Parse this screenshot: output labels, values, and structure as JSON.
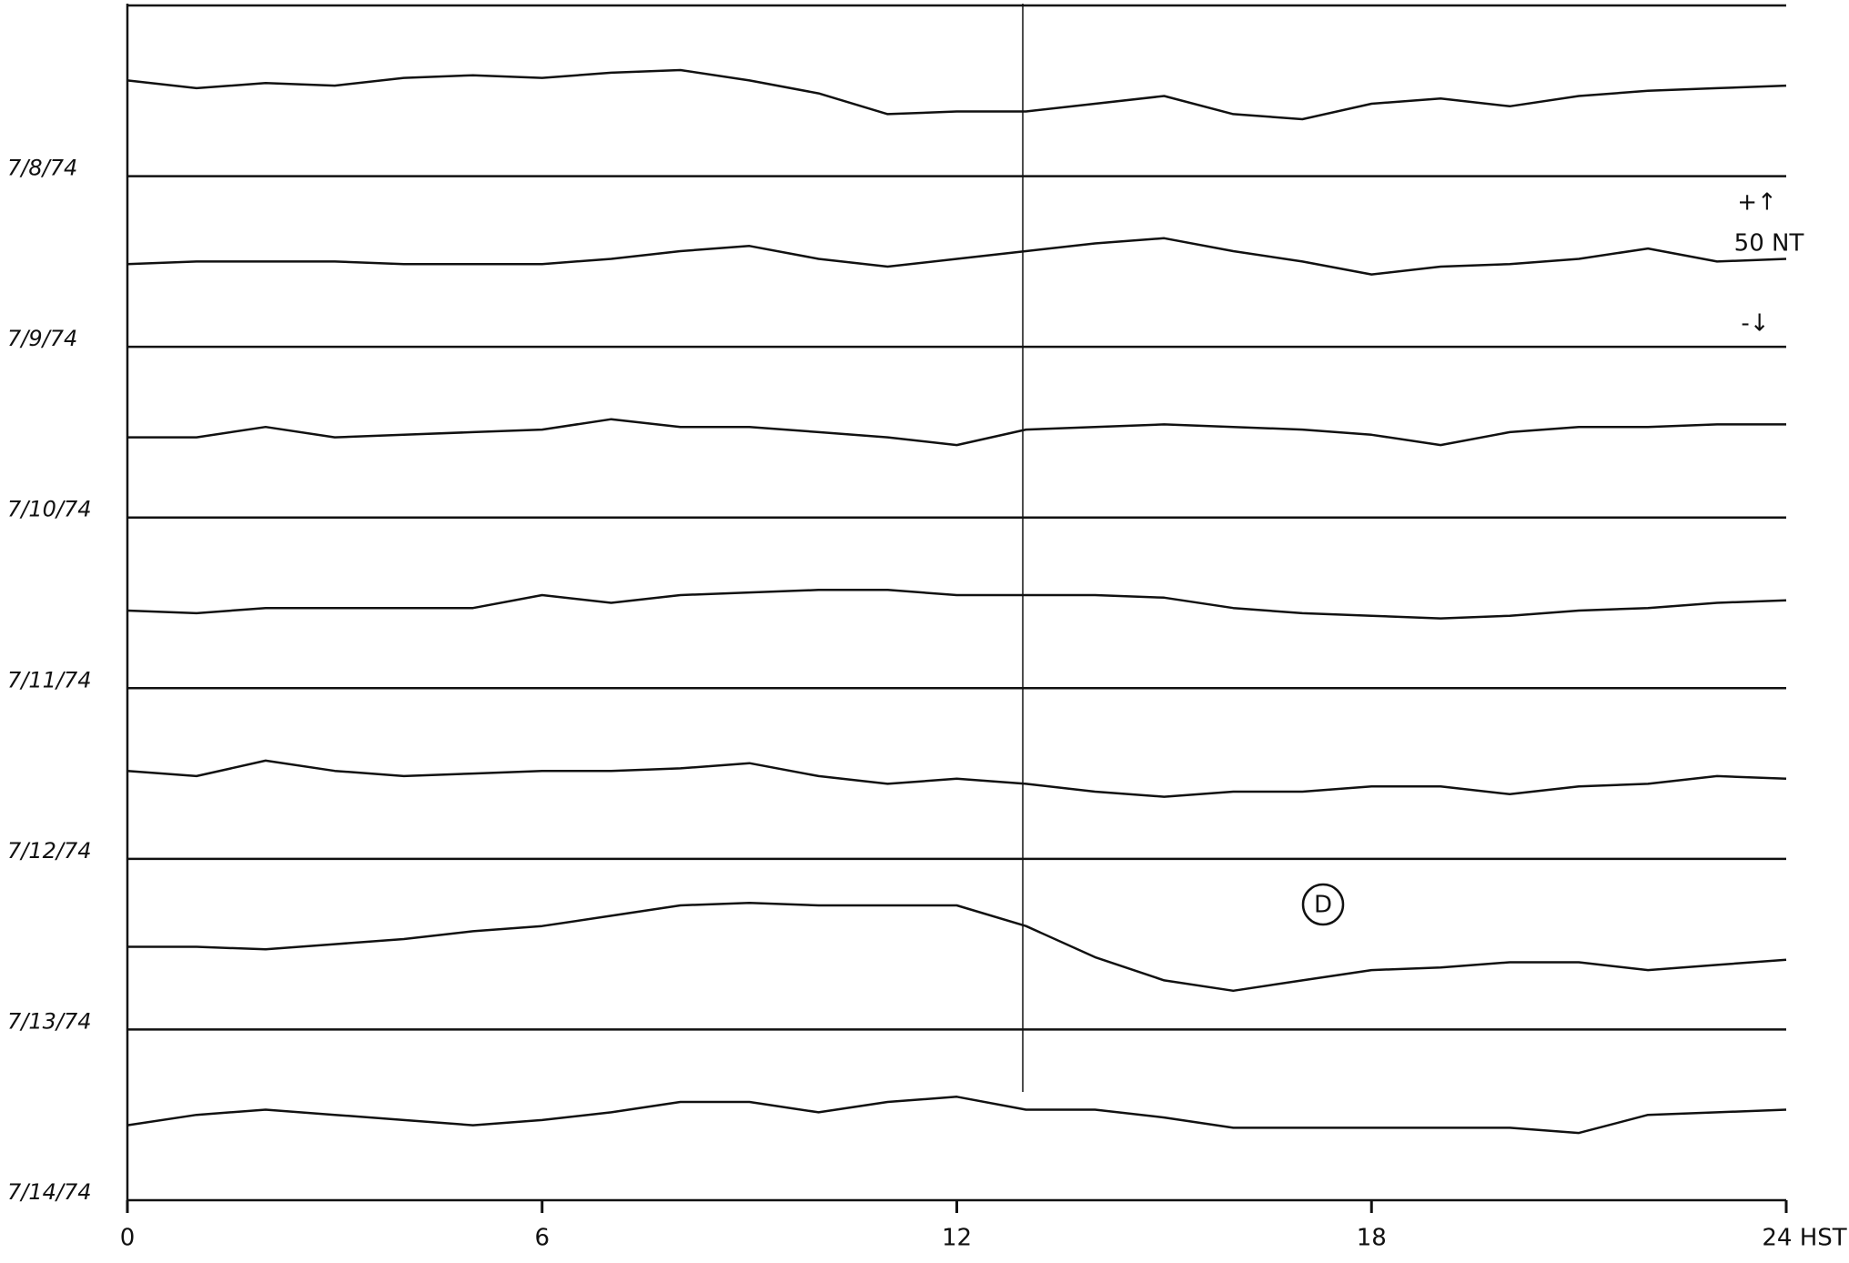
{
  "chart_data": {
    "type": "line",
    "x": [
      0,
      1,
      2,
      3,
      4,
      5,
      6,
      7,
      8,
      9,
      10,
      11,
      12,
      13,
      14,
      15,
      16,
      17,
      18,
      19,
      20,
      21,
      22,
      23,
      24
    ],
    "xlim": [
      0,
      24
    ],
    "xticks": [
      0,
      6,
      12,
      18,
      {
        "value": 24,
        "label": "24 HST"
      }
    ],
    "ylim": [
      -33,
      33
    ],
    "series": [
      {
        "name": "7/8/74",
        "color": "#111111",
        "values": [
          4,
          1,
          3,
          2,
          5,
          6,
          5,
          7,
          8,
          4,
          -1,
          -9,
          -8,
          -8,
          -5,
          -2,
          -9,
          -11,
          -5,
          -3,
          -6,
          -2,
          0,
          1,
          2
        ]
      },
      {
        "name": "7/9/74",
        "color": "#111111",
        "values": [
          -1,
          0,
          0,
          0,
          -1,
          -1,
          -1,
          1,
          4,
          6,
          1,
          -2,
          1,
          4,
          7,
          9,
          4,
          0,
          -5,
          -2,
          -1,
          1,
          5,
          0,
          1
        ]
      },
      {
        "name": "7/10/74",
        "color": "#111111",
        "values": [
          -2,
          -2,
          2,
          -2,
          -1,
          0,
          1,
          5,
          2,
          2,
          0,
          -2,
          -5,
          1,
          2,
          3,
          2,
          1,
          -1,
          -5,
          0,
          2,
          2,
          3,
          3
        ]
      },
      {
        "name": "7/11/74",
        "color": "#111111",
        "values": [
          -3,
          -4,
          -2,
          -2,
          -2,
          -2,
          3,
          0,
          3,
          4,
          5,
          5,
          3,
          3,
          3,
          2,
          -2,
          -4,
          -5,
          -6,
          -5,
          -3,
          -2,
          0,
          1
        ]
      },
      {
        "name": "7/12/74",
        "color": "#111111",
        "values": [
          1,
          -1,
          5,
          1,
          -1,
          0,
          1,
          1,
          2,
          4,
          -1,
          -4,
          -2,
          -4,
          -7,
          -9,
          -7,
          -7,
          -5,
          -5,
          -8,
          -5,
          -4,
          -1,
          -2
        ]
      },
      {
        "name": "7/13/74",
        "color": "#111111",
        "values": [
          -1,
          -1,
          -2,
          0,
          2,
          5,
          7,
          11,
          15,
          16,
          15,
          15,
          15,
          7,
          -5,
          -14,
          -18,
          -14,
          -10,
          -9,
          -7,
          -7,
          -10,
          -8,
          -6
        ]
      },
      {
        "name": "7/14/74",
        "color": "#111111",
        "values": [
          -4,
          0,
          2,
          0,
          -2,
          -4,
          -2,
          1,
          5,
          5,
          1,
          5,
          7,
          2,
          2,
          -1,
          -5,
          -5,
          -5,
          -5,
          -5,
          -7,
          0,
          1,
          2
        ]
      }
    ],
    "scale_labels": [
      "+↑",
      "50 NT",
      "-↓"
    ],
    "annotation": "D"
  }
}
